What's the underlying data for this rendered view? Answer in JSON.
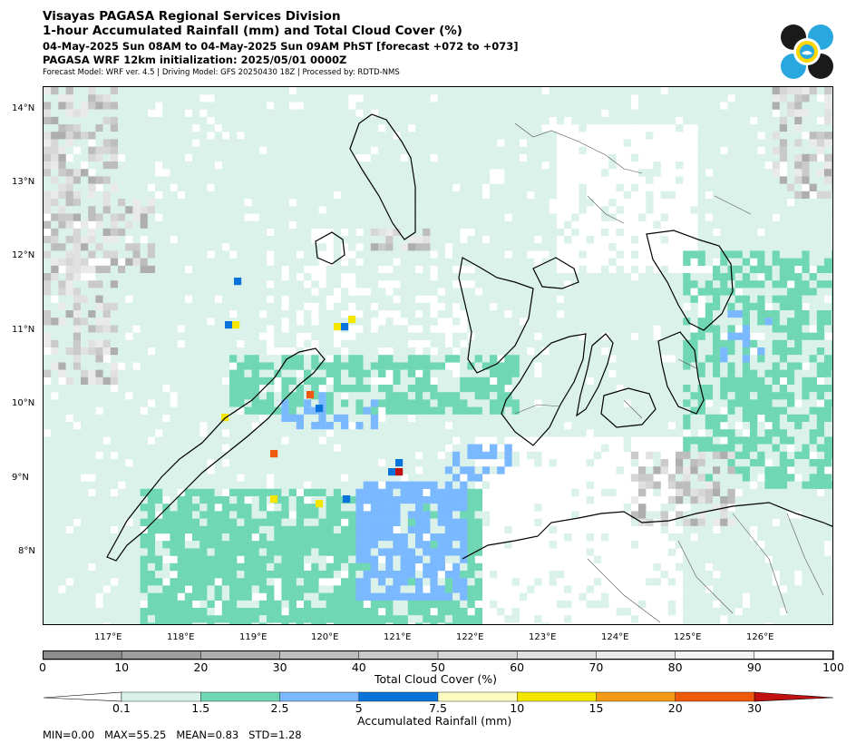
{
  "header": {
    "line1": "Visayas PAGASA Regional Services Division",
    "line2": "1-hour Accumulated Rainfall (mm) and Total Cloud Cover (%)",
    "line3": "04-May-2025 Sun 08AM to 04-May-2025 Sun 09AM PhST [forecast +072 to +073]",
    "line4": "PAGASA WRF 12km initialization: 2025/05/01 0000Z",
    "line5": "Forecast Model: WRF ver. 4.5 | Driving Model: GFS 20250430 18Z | Processed by: RDTD-NMS"
  },
  "logo": {
    "icon": "pagasa-seal-icon",
    "colors": [
      "#1a1a1a",
      "#29a8e0",
      "#ffd700"
    ]
  },
  "map": {
    "lat_labels": [
      "14°N",
      "13°N",
      "12°N",
      "11°N",
      "10°N",
      "9°N",
      "8°N"
    ],
    "lon_labels": [
      "117°E",
      "118°E",
      "119°E",
      "120°E",
      "121°E",
      "122°E",
      "123°E",
      "124°E",
      "125°E",
      "126°E"
    ]
  },
  "cloud_colorbar": {
    "ticks": [
      "0",
      "10",
      "20",
      "30",
      "40",
      "50",
      "60",
      "70",
      "80",
      "90",
      "100"
    ],
    "label": "Total Cloud Cover (%)",
    "colors": [
      "#8c8c8c",
      "#9e9e9e",
      "#aeaeae",
      "#bdbdbd",
      "#cacaca",
      "#d6d6d6",
      "#e1e1e1",
      "#eaeaea",
      "#f3f3f3",
      "#fcfcfc"
    ]
  },
  "rain_colorbar": {
    "ticks": [
      "0.1",
      "1.5",
      "2.5",
      "5",
      "7.5",
      "10",
      "15",
      "20",
      "30"
    ],
    "label": "Accumulated Rainfall (mm)",
    "colors": [
      "#ffffff",
      "#dbf2ea",
      "#6fd7b4",
      "#7ab8ff",
      "#0873da",
      "#fdfcc0",
      "#f5e600",
      "#f59a14",
      "#ee5a0a",
      "#c01010"
    ]
  },
  "stats": {
    "text": "MIN=0.00   MAX=55.25   MEAN=0.83   STD=1.28"
  }
}
